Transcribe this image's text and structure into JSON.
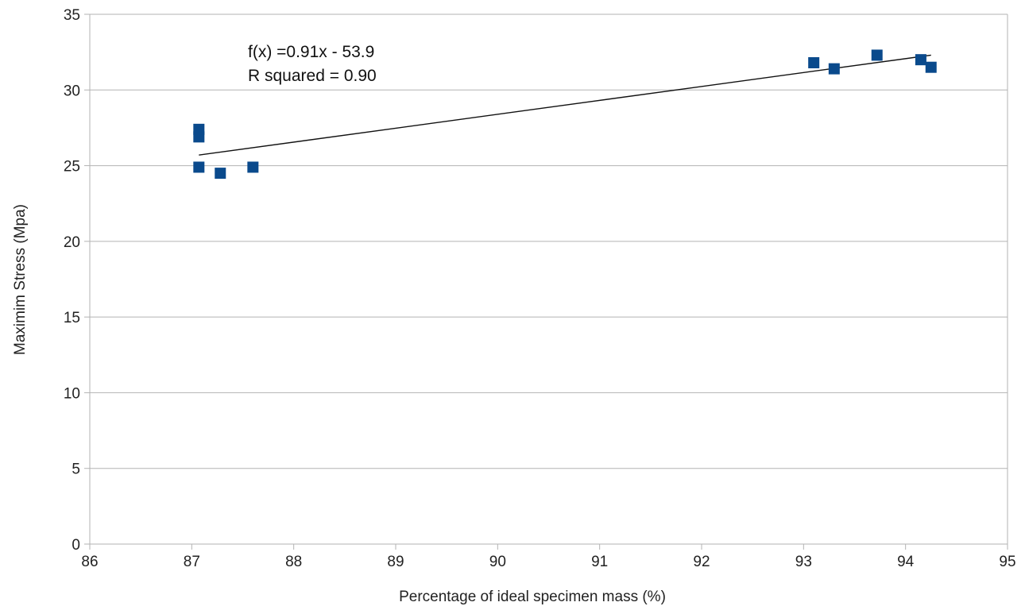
{
  "chart_data": {
    "type": "scatter",
    "title": "",
    "xlabel": "Percentage of  ideal specimen mass (%)",
    "ylabel": "Maximim Stress (Mpa)",
    "xlim": [
      86,
      95
    ],
    "ylim": [
      0,
      35
    ],
    "x_ticks": [
      "86",
      "87",
      "88",
      "89",
      "90",
      "91",
      "92",
      "93",
      "94",
      "95"
    ],
    "y_ticks": [
      "0",
      "5",
      "10",
      "15",
      "20",
      "25",
      "30",
      "35"
    ],
    "grid": "horizontal",
    "legend": "none",
    "marker_color": "#0a4a8c",
    "marker": "square",
    "points": [
      {
        "x": 87.07,
        "y": 27.4
      },
      {
        "x": 87.07,
        "y": 26.9
      },
      {
        "x": 87.07,
        "y": 24.9
      },
      {
        "x": 87.28,
        "y": 24.5
      },
      {
        "x": 87.6,
        "y": 24.9
      },
      {
        "x": 93.1,
        "y": 31.8
      },
      {
        "x": 93.3,
        "y": 31.4
      },
      {
        "x": 93.72,
        "y": 32.3
      },
      {
        "x": 94.15,
        "y": 32.0
      },
      {
        "x": 94.25,
        "y": 31.5
      }
    ],
    "trendline": {
      "type": "linear",
      "x_range": [
        87.07,
        94.25
      ],
      "y_range": [
        25.7,
        32.3
      ],
      "color": "#111111"
    },
    "annotations": [
      "f(x) =0.91x - 53.9",
      "R squared = 0.90"
    ]
  }
}
